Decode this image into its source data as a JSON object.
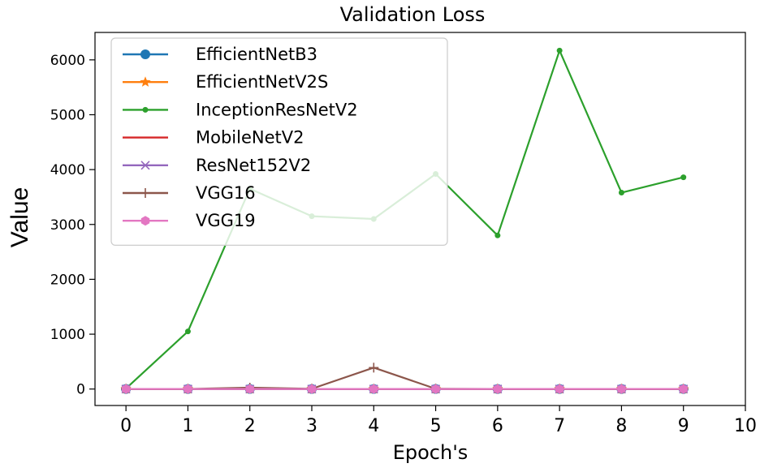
{
  "chart_data": {
    "type": "line",
    "title": "Validation Loss",
    "xlabel": "Epoch's",
    "ylabel": "Value",
    "xlim": [
      -0.5,
      10
    ],
    "ylim": [
      -300,
      6500
    ],
    "xticks": [
      0,
      1,
      2,
      3,
      4,
      5,
      6,
      7,
      8,
      9,
      10
    ],
    "yticks": [
      0,
      1000,
      2000,
      3000,
      4000,
      5000,
      6000
    ],
    "legend_position": "top-left",
    "grid": false,
    "x": [
      0,
      1,
      2,
      3,
      4,
      5,
      6,
      7,
      8,
      9
    ],
    "series": [
      {
        "name": "EfficientNetB3",
        "color": "#1f77b4",
        "marker": "circle",
        "values": [
          1,
          1,
          1,
          1,
          1,
          1,
          1,
          1,
          1,
          1
        ]
      },
      {
        "name": "EfficientNetV2S",
        "color": "#ff7f0e",
        "marker": "star",
        "values": [
          1,
          1,
          1,
          1,
          1,
          1,
          1,
          1,
          1,
          1
        ]
      },
      {
        "name": "InceptionResNetV2",
        "color": "#2ca02c",
        "marker": "point",
        "values": [
          10,
          1050,
          3650,
          3150,
          3100,
          3920,
          2800,
          6170,
          3580,
          3860
        ]
      },
      {
        "name": "MobileNetV2",
        "color": "#d62728",
        "marker": "none",
        "values": [
          1,
          1,
          1,
          1,
          1,
          1,
          1,
          1,
          1,
          1
        ]
      },
      {
        "name": "ResNet152V2",
        "color": "#9467bd",
        "marker": "x",
        "values": [
          1,
          1,
          1,
          1,
          1,
          1,
          1,
          1,
          1,
          1
        ]
      },
      {
        "name": "VGG16",
        "color": "#8c564b",
        "marker": "plus",
        "values": [
          1,
          1,
          25,
          5,
          390,
          5,
          1,
          1,
          1,
          1
        ]
      },
      {
        "name": "VGG19",
        "color": "#e377c2",
        "marker": "hexagon",
        "values": [
          1,
          1,
          1,
          1,
          1,
          1,
          1,
          1,
          1,
          1
        ]
      }
    ]
  }
}
